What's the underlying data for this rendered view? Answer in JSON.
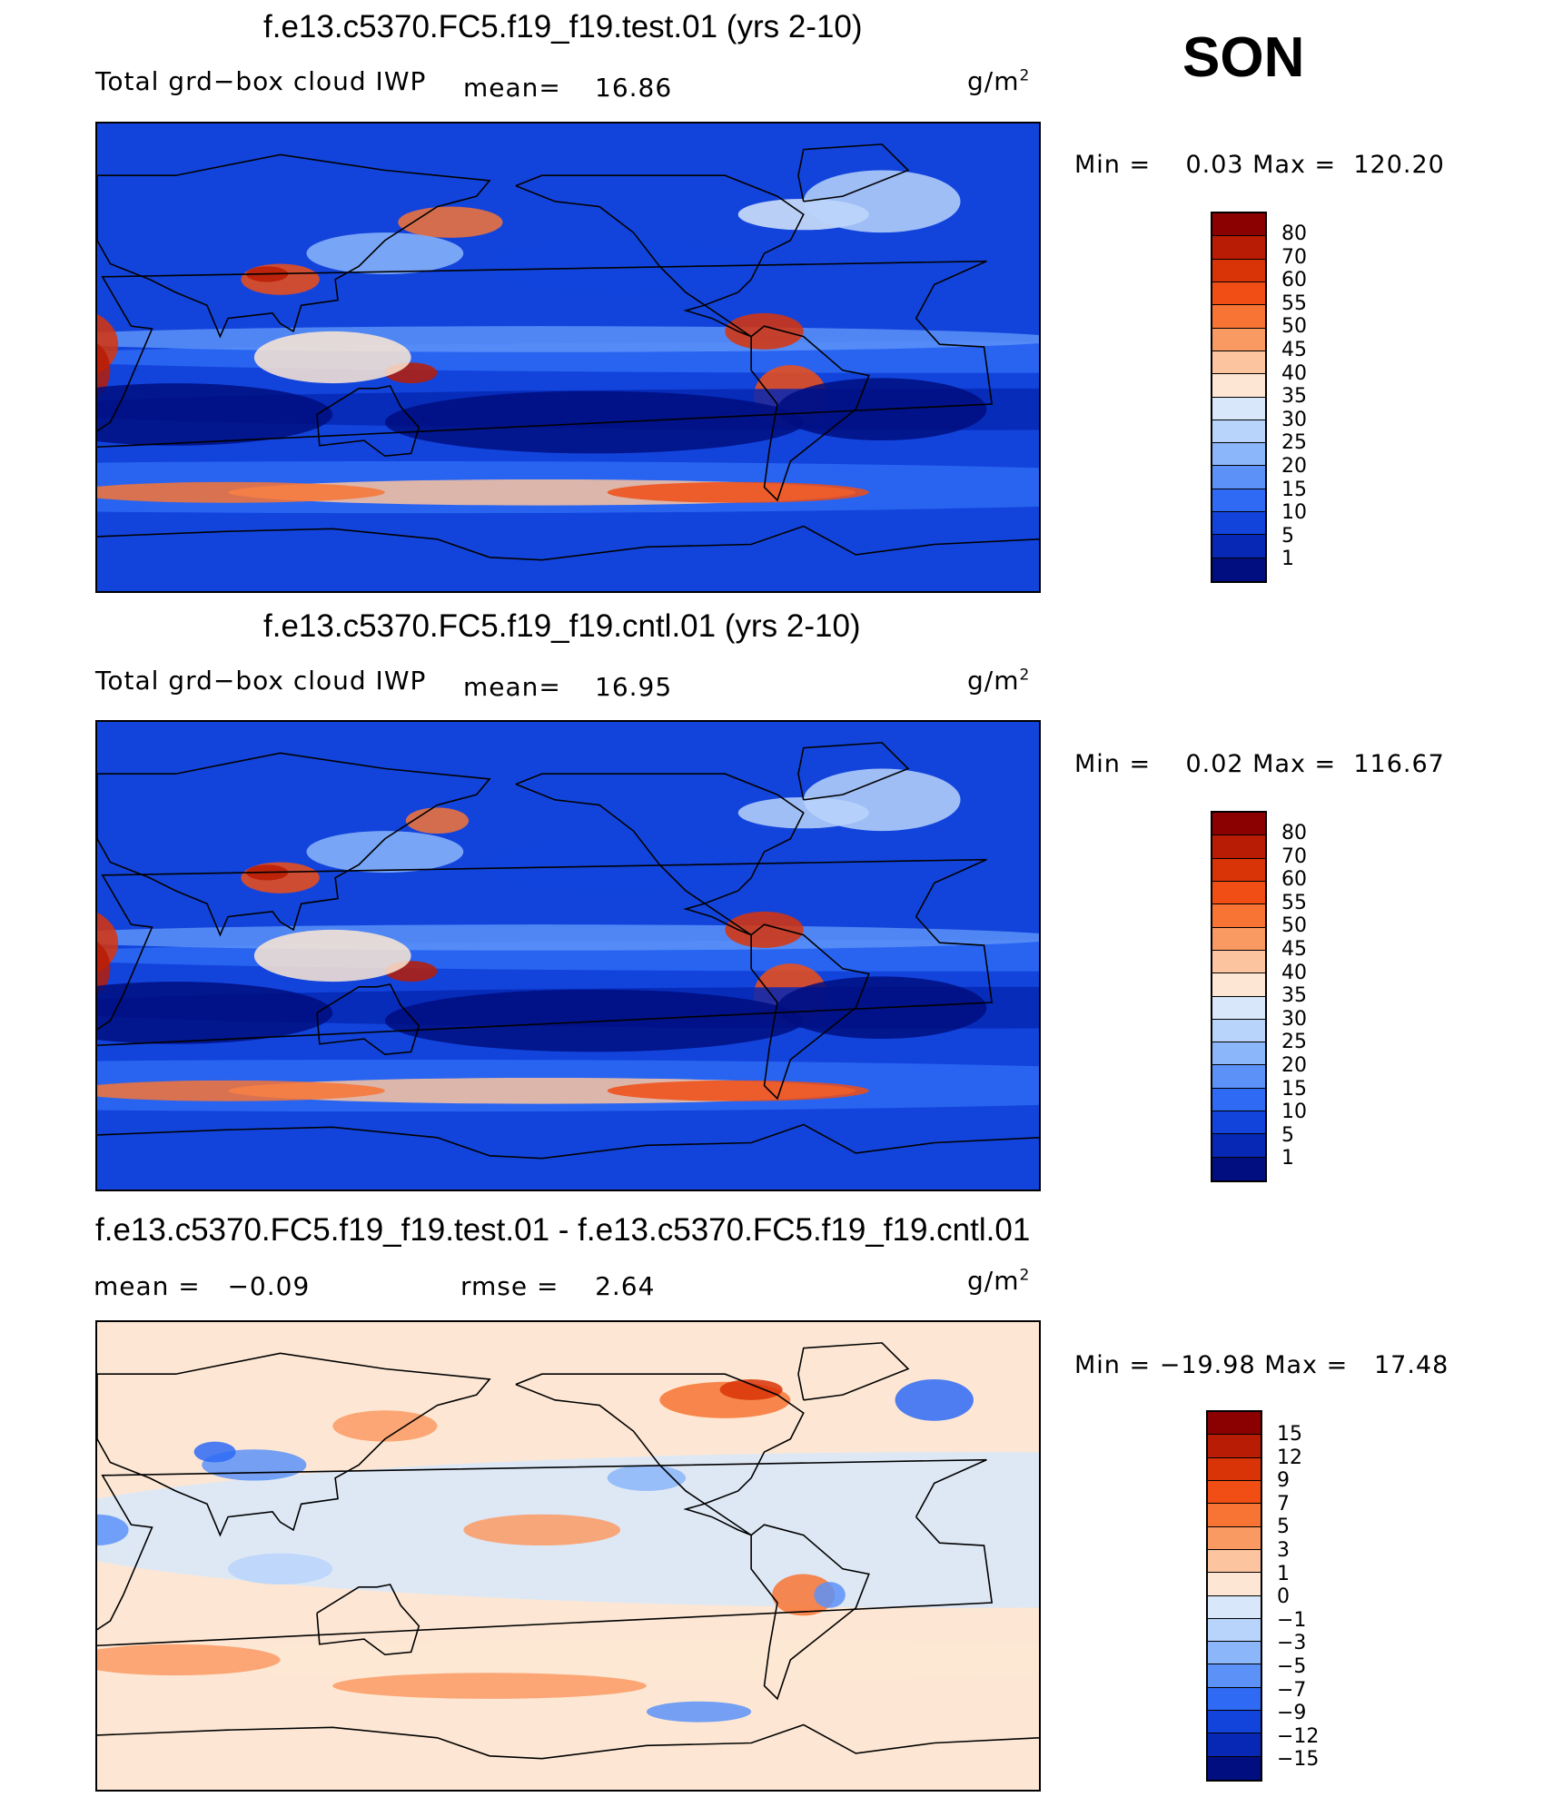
{
  "season": "SON",
  "panels": [
    {
      "id": "test",
      "title": "f.e13.c5370.FC5.f19_f19.test.01 (yrs 2-10)",
      "variable": "Total grd−box cloud IWP",
      "mean_label": "mean=",
      "mean_value": "16.86",
      "units_base": "g/m",
      "units_exp": "2",
      "min_max": "Min =    0.03 Max =  120.20"
    },
    {
      "id": "cntl",
      "title": "f.e13.c5370.FC5.f19_f19.cntl.01 (yrs 2-10)",
      "variable": "Total grd−box cloud IWP",
      "mean_label": "mean=",
      "mean_value": "16.95",
      "units_base": "g/m",
      "units_exp": "2",
      "min_max": "Min =    0.02 Max =  116.67"
    },
    {
      "id": "diff",
      "title": "f.e13.c5370.FC5.f19_f19.test.01 - f.e13.c5370.FC5.f19_f19.cntl.01",
      "mean_text": "mean =   −0.09",
      "rmse_text": "rmse =    2.64",
      "units_base": "g/m",
      "units_exp": "2",
      "min_max": "Min = −19.98 Max =   17.48"
    }
  ],
  "chart_data": [
    {
      "type": "heatmap",
      "title": "f.e13.c5370.FC5.f19_f19.test.01 (yrs 2-10)",
      "field": "Total grd-box cloud IWP",
      "units": "g/m2",
      "mean": 16.86,
      "min": 0.03,
      "max": 120.2,
      "projection": "global cylindrical equidistant, Pacific-centered",
      "contour_levels": [
        1,
        5,
        10,
        15,
        20,
        25,
        30,
        35,
        40,
        45,
        50,
        55,
        60,
        70,
        80
      ],
      "colorbar_labels": [
        "80",
        "70",
        "60",
        "55",
        "50",
        "45",
        "40",
        "35",
        "30",
        "25",
        "20",
        "15",
        "10",
        "5",
        "1"
      ],
      "colors": [
        "#8b0000",
        "#b81c04",
        "#d93408",
        "#f04e14",
        "#f77434",
        "#fa9a63",
        "#fcc49f",
        "#fde7d4",
        "#d8e8fa",
        "#b8d4fa",
        "#8cb6fa",
        "#5c92f8",
        "#2e6af4",
        "#1244dc",
        "#0628b4",
        "#000e80"
      ]
    },
    {
      "type": "heatmap",
      "title": "f.e13.c5370.FC5.f19_f19.cntl.01 (yrs 2-10)",
      "field": "Total grd-box cloud IWP",
      "units": "g/m2",
      "mean": 16.95,
      "min": 0.02,
      "max": 116.67,
      "projection": "global cylindrical equidistant, Pacific-centered",
      "contour_levels": [
        1,
        5,
        10,
        15,
        20,
        25,
        30,
        35,
        40,
        45,
        50,
        55,
        60,
        70,
        80
      ],
      "colorbar_labels": [
        "80",
        "70",
        "60",
        "55",
        "50",
        "45",
        "40",
        "35",
        "30",
        "25",
        "20",
        "15",
        "10",
        "5",
        "1"
      ],
      "colors": [
        "#8b0000",
        "#b81c04",
        "#d93408",
        "#f04e14",
        "#f77434",
        "#fa9a63",
        "#fcc49f",
        "#fde7d4",
        "#d8e8fa",
        "#b8d4fa",
        "#8cb6fa",
        "#5c92f8",
        "#2e6af4",
        "#1244dc",
        "#0628b4",
        "#000e80"
      ]
    },
    {
      "type": "heatmap",
      "title": "f.e13.c5370.FC5.f19_f19.test.01 - f.e13.c5370.FC5.f19_f19.cntl.01",
      "field": "Total grd-box cloud IWP difference",
      "units": "g/m2",
      "mean": -0.09,
      "rmse": 2.64,
      "min": -19.98,
      "max": 17.48,
      "projection": "global cylindrical equidistant, Pacific-centered",
      "contour_levels": [
        -15,
        -12,
        -9,
        -7,
        -5,
        -3,
        -1,
        0,
        1,
        3,
        5,
        7,
        9,
        12,
        15
      ],
      "colorbar_labels": [
        "15",
        "12",
        "9",
        "7",
        "5",
        "3",
        "1",
        "0",
        "−1",
        "−3",
        "−5",
        "−7",
        "−9",
        "−12",
        "−15"
      ],
      "colors": [
        "#8b0000",
        "#b81c04",
        "#d93408",
        "#f04e14",
        "#f77434",
        "#fa9a63",
        "#fcc49f",
        "#fde7d4",
        "#d8e8fa",
        "#b8d4fa",
        "#8cb6fa",
        "#5c92f8",
        "#2e6af4",
        "#1244dc",
        "#0628b4",
        "#000e80"
      ]
    }
  ]
}
